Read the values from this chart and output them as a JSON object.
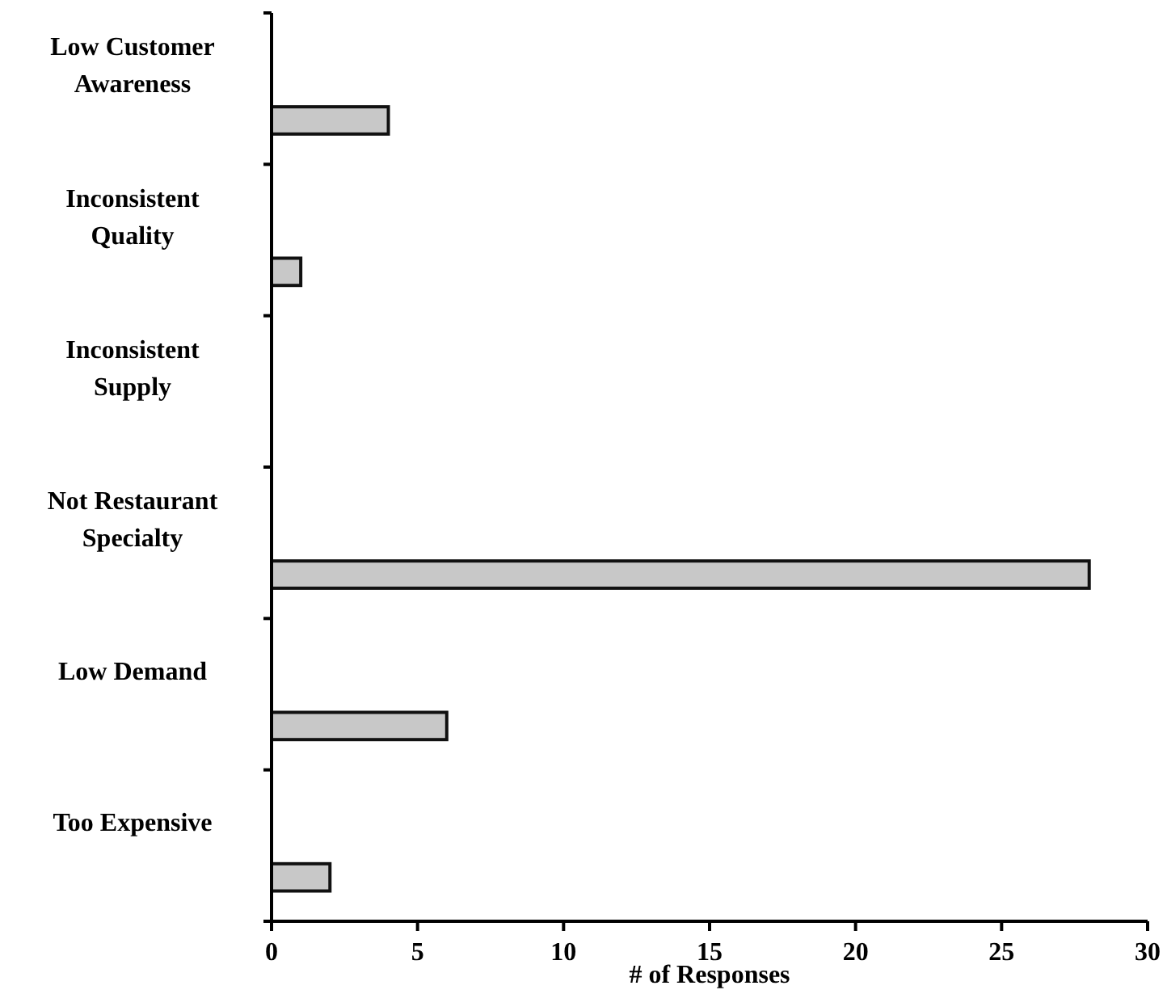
{
  "chart_data": {
    "type": "bar",
    "orientation": "horizontal",
    "xlabel": "# of Responses",
    "categories": [
      "Low Customer Awareness",
      "Inconsistent Quality",
      "Inconsistent Supply",
      "Not Restaurant Specialty",
      "Low Demand",
      "Too Expensive"
    ],
    "values": [
      4,
      1,
      0,
      28,
      6,
      2
    ],
    "color": "#c8c8c8",
    "xlim": [
      0,
      30
    ],
    "xticks": [
      0,
      5,
      10,
      15,
      20,
      25,
      30
    ],
    "grid": false
  }
}
